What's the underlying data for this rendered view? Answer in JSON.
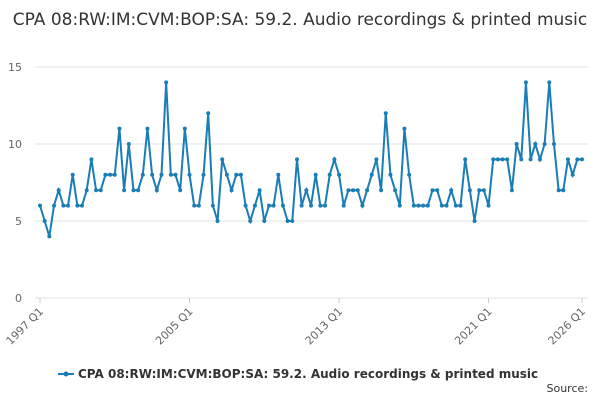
{
  "chart_data": {
    "type": "line",
    "title": "CPA 08:RW:IM:CVM:BOP:SA: 59.2. Audio recordings & printed music",
    "source_label": "Source:",
    "categories": [
      "1997 Q1",
      null,
      null,
      null,
      null,
      null,
      null,
      null,
      null,
      null,
      null,
      null,
      null,
      null,
      null,
      null,
      null,
      null,
      null,
      null,
      null,
      null,
      null,
      null,
      null,
      null,
      null,
      null,
      null,
      null,
      null,
      null,
      "2005 Q1",
      null,
      null,
      null,
      null,
      null,
      null,
      null,
      null,
      null,
      null,
      null,
      null,
      null,
      null,
      null,
      null,
      null,
      null,
      null,
      null,
      null,
      null,
      null,
      null,
      null,
      null,
      null,
      null,
      null,
      null,
      null,
      "2013 Q1",
      null,
      null,
      null,
      null,
      null,
      null,
      null,
      null,
      null,
      null,
      null,
      null,
      null,
      null,
      null,
      null,
      null,
      null,
      null,
      null,
      null,
      null,
      null,
      null,
      null,
      null,
      null,
      null,
      null,
      null,
      null,
      "2021 Q1",
      null,
      null,
      null,
      null,
      null,
      null,
      null,
      null,
      null,
      null,
      null,
      null,
      null,
      null,
      null,
      null,
      null,
      null,
      null,
      "2026 Q1"
    ],
    "series": [
      {
        "name": "CPA 08:RW:IM:CVM:BOP:SA: 59.2. Audio recordings & printed music",
        "color": "#1a7db5",
        "values": [
          6,
          5,
          4,
          6,
          7,
          6,
          6,
          8,
          6,
          6,
          7,
          9,
          7,
          7,
          8,
          8,
          8,
          11,
          7,
          10,
          7,
          7,
          8,
          11,
          8,
          7,
          8,
          14,
          8,
          8,
          7,
          11,
          8,
          6,
          6,
          8,
          12,
          6,
          5,
          9,
          8,
          7,
          8,
          8,
          6,
          5,
          6,
          7,
          5,
          6,
          6,
          8,
          6,
          5,
          5,
          9,
          6,
          7,
          6,
          8,
          6,
          6,
          8,
          9,
          8,
          6,
          7,
          7,
          7,
          6,
          7,
          8,
          9,
          7,
          12,
          8,
          7,
          6,
          11,
          8,
          6,
          6,
          6,
          6,
          7,
          7,
          6,
          6,
          7,
          6,
          6,
          9,
          7,
          5,
          7,
          7,
          6,
          9,
          9,
          9,
          9,
          7,
          10,
          9,
          14,
          9,
          10,
          9,
          10,
          14,
          10,
          7,
          7,
          9,
          8,
          9,
          9
        ]
      }
    ],
    "ylim": [
      0,
      15
    ],
    "yticks": [
      0,
      5,
      10,
      15
    ],
    "grid": true
  }
}
